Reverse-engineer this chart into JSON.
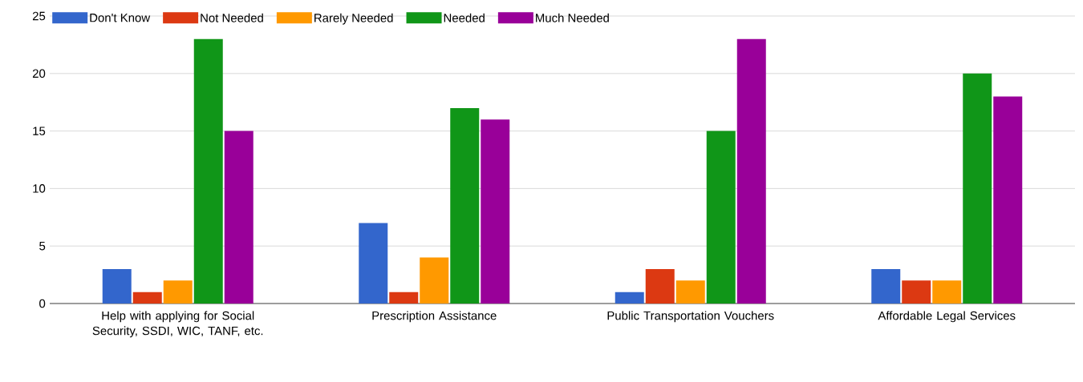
{
  "chart_data": {
    "type": "bar",
    "categories": [
      "Help with applying for Social Security, SSDI, WIC, TANF, etc.",
      "Prescription Assistance",
      "Public Transportation Vouchers",
      "Affordable Legal Services"
    ],
    "series": [
      {
        "name": "Don't Know",
        "color": "#3366cc",
        "values": [
          3,
          7,
          1,
          3
        ]
      },
      {
        "name": "Not Needed",
        "color": "#dc3912",
        "values": [
          1,
          1,
          3,
          2
        ]
      },
      {
        "name": "Rarely Needed",
        "color": "#ff9900",
        "values": [
          2,
          4,
          2,
          2
        ]
      },
      {
        "name": "Needed",
        "color": "#109618",
        "values": [
          23,
          17,
          15,
          20
        ]
      },
      {
        "name": "Much Needed",
        "color": "#990099",
        "values": [
          15,
          16,
          23,
          18
        ]
      }
    ],
    "ylim": [
      0,
      25
    ],
    "yticks": [
      0,
      5,
      10,
      15,
      20,
      25
    ],
    "grid": "y",
    "legend": "top"
  }
}
